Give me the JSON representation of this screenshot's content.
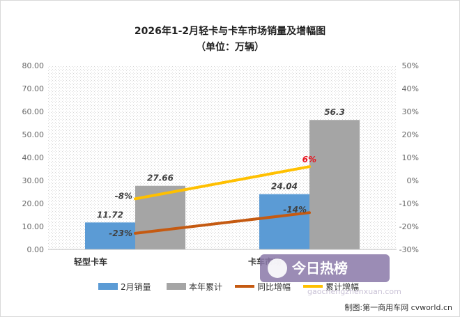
{
  "chart_data": {
    "type": "bar",
    "title": "2026年1-2月轻卡与卡车市场销量及增幅图",
    "subtitle": "（单位：万辆）",
    "categories": [
      "轻型卡车",
      "卡车市场"
    ],
    "series": [
      {
        "name": "2月销量",
        "kind": "bar",
        "axis": "left",
        "color": "#5b9bd5",
        "values": [
          11.72,
          24.04
        ],
        "labels": [
          "11.72",
          "24.04"
        ]
      },
      {
        "name": "本年累计",
        "kind": "bar",
        "axis": "left",
        "color": "#a5a5a5",
        "values": [
          27.66,
          56.3
        ],
        "labels": [
          "27.66",
          "56.3"
        ]
      },
      {
        "name": "同比增幅",
        "kind": "line",
        "axis": "right",
        "color": "#c55a11",
        "values": [
          -23,
          -14
        ],
        "labels": [
          "-23%",
          "-14%"
        ]
      },
      {
        "name": "累计增幅",
        "kind": "line",
        "axis": "right",
        "color": "#ffc000",
        "values": [
          -8,
          6
        ],
        "labels": [
          "-8%",
          "6%"
        ]
      }
    ],
    "y_left": {
      "min": 0,
      "max": 80,
      "step": 10,
      "ticks": [
        "0.00",
        "10.00",
        "20.00",
        "30.00",
        "40.00",
        "50.00",
        "60.00",
        "70.00",
        "80.00"
      ]
    },
    "y_right": {
      "min": -30,
      "max": 50,
      "step": 10,
      "ticks": [
        "-30%",
        "-20%",
        "-10%",
        "0%",
        "10%",
        "20%",
        "30%",
        "40%",
        "50%"
      ]
    },
    "legend_position": "bottom",
    "grid": false
  },
  "watermark": {
    "name": "今日热榜",
    "url": "gaochengzhenxuan.com"
  },
  "credit": "制图:第一商用车网 cvworld.cn"
}
